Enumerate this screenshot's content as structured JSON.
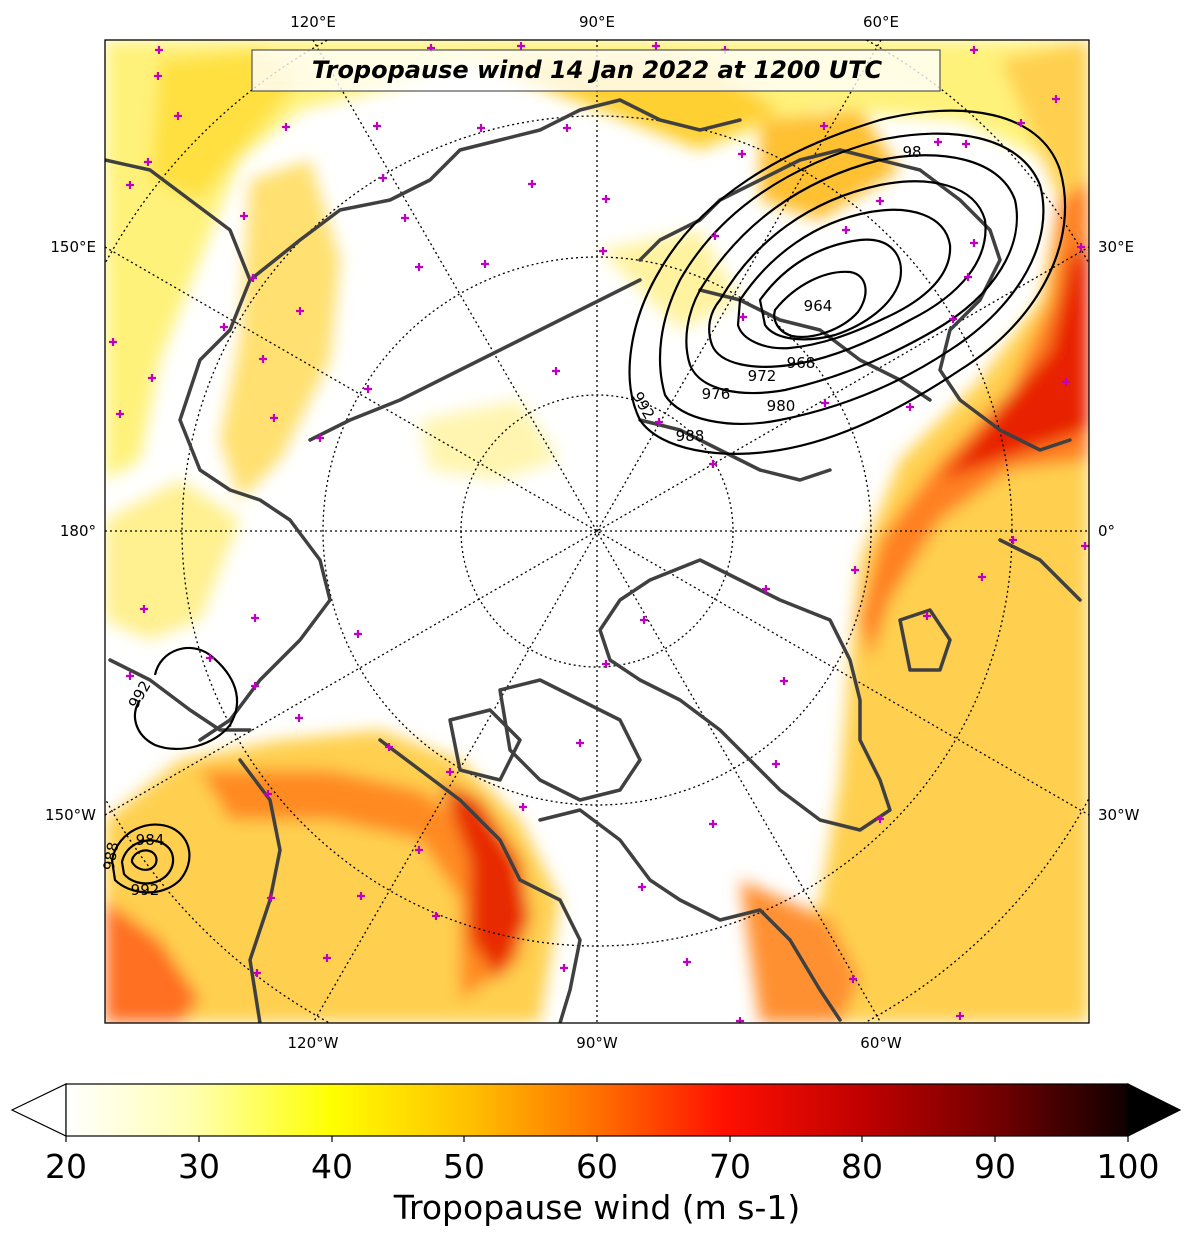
{
  "title": "Tropopause wind 14 Jan 2022 at 1200 UTC",
  "longitude_labels": {
    "top": [
      "120°E",
      "90°E",
      "60°E"
    ],
    "bottom": [
      "120°W",
      "90°W",
      "60°W"
    ],
    "left": [
      "150°E",
      "180°",
      "150°W"
    ],
    "right": [
      "30°E",
      "0°",
      "30°W"
    ]
  },
  "pressure_contour_labels": [
    "98",
    "964",
    "968",
    "972",
    "976",
    "980",
    "992",
    "988",
    "992",
    "988",
    "984",
    "992"
  ],
  "colorbar": {
    "label": "Tropopause wind (m s-1)",
    "ticks": [
      "20",
      "30",
      "40",
      "50",
      "60",
      "70",
      "80",
      "90",
      "100"
    ],
    "min": 20,
    "max": 100,
    "extend": "both",
    "colormap": "hot_r"
  },
  "colors": {
    "coastline": "#404040",
    "contour": "#000000",
    "station_marker": "#c000c0",
    "graticule": "#000000"
  }
}
